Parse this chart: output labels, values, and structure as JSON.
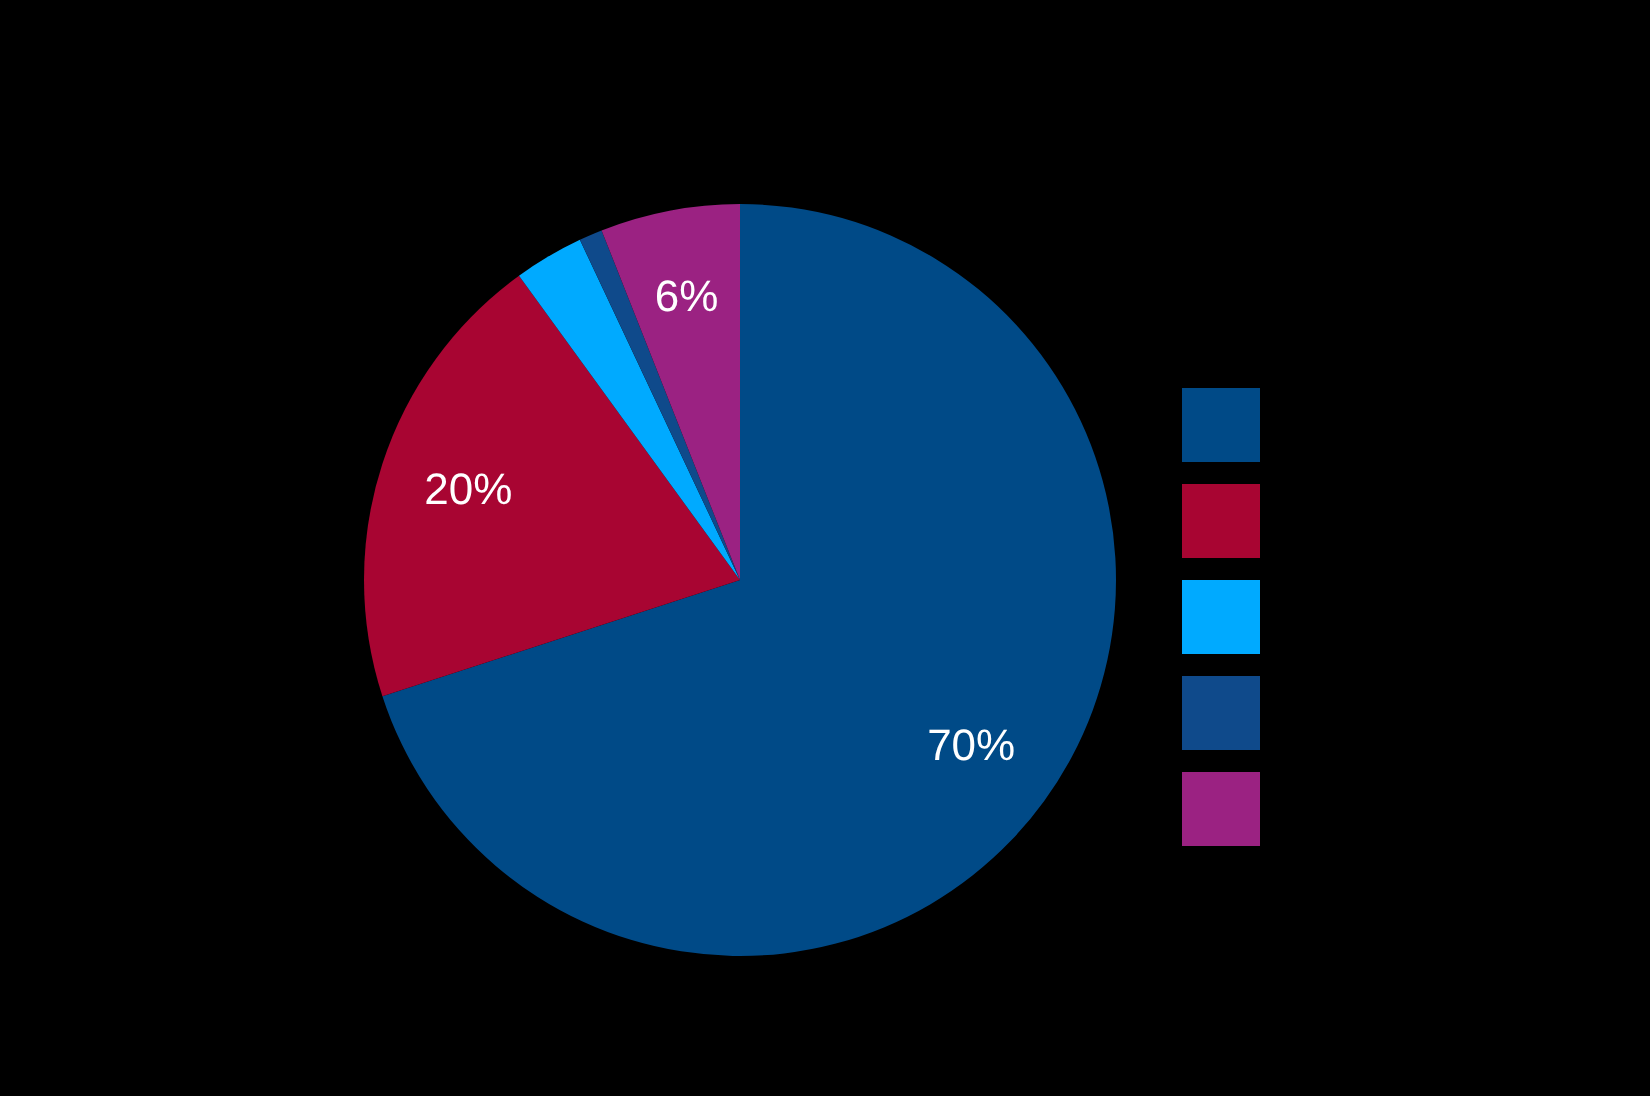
{
  "chart_data": {
    "type": "pie",
    "categories": [
      null,
      null,
      null,
      null,
      null
    ],
    "values": [
      70,
      20,
      3,
      1,
      6
    ],
    "colors": [
      "#004a87",
      "#a80532",
      "#00aaff",
      "#0f4a8b",
      "#9b2282"
    ],
    "value_labels": [
      "70%",
      "20%",
      null,
      null,
      "6%"
    ]
  }
}
